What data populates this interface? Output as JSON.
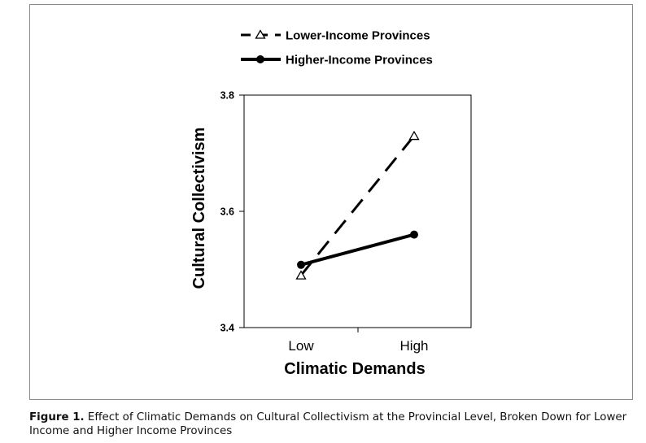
{
  "chart_data": {
    "type": "line",
    "categories": [
      "Low",
      "High"
    ],
    "series": [
      {
        "name": "Lower-Income Provinces",
        "values": [
          3.49,
          3.73
        ],
        "line_style": "dashed",
        "marker": "open-triangle",
        "color": "#000000"
      },
      {
        "name": "Higher-Income Provinces",
        "values": [
          3.508,
          3.56
        ],
        "line_style": "solid",
        "marker": "filled-circle",
        "color": "#000000"
      }
    ],
    "xlabel": "Climatic Demands",
    "ylabel": "Cultural Collectivism",
    "ylim": [
      3.4,
      3.8
    ],
    "yticks": [
      "3.4",
      "3.6",
      "3.8"
    ],
    "grid": false,
    "legend_position": "top-center"
  },
  "caption": {
    "label": "Figure 1.",
    "text": " Effect of Climatic Demands on Cultural Collectivism at the Provincial Level, Broken Down for Lower Income and Higher Income Provinces"
  }
}
